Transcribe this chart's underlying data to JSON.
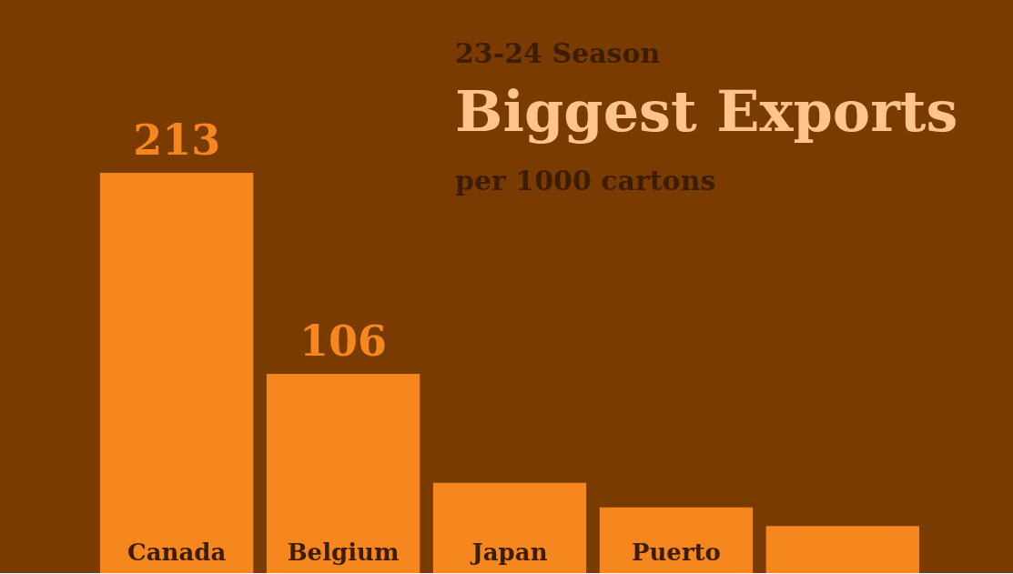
{
  "chart_data": {
    "type": "bar",
    "title": "Biggest Exports",
    "subtitle": "23-24 Season",
    "annotations": [
      "per 1000 cartons"
    ],
    "categories": [
      "Canada",
      "Belgium",
      "Japan",
      "Puerto",
      null
    ],
    "values": [
      213,
      106,
      48,
      35,
      25
    ],
    "value_labels": [
      "213",
      "106",
      null,
      null,
      null
    ],
    "color": "#f6871f"
  }
}
